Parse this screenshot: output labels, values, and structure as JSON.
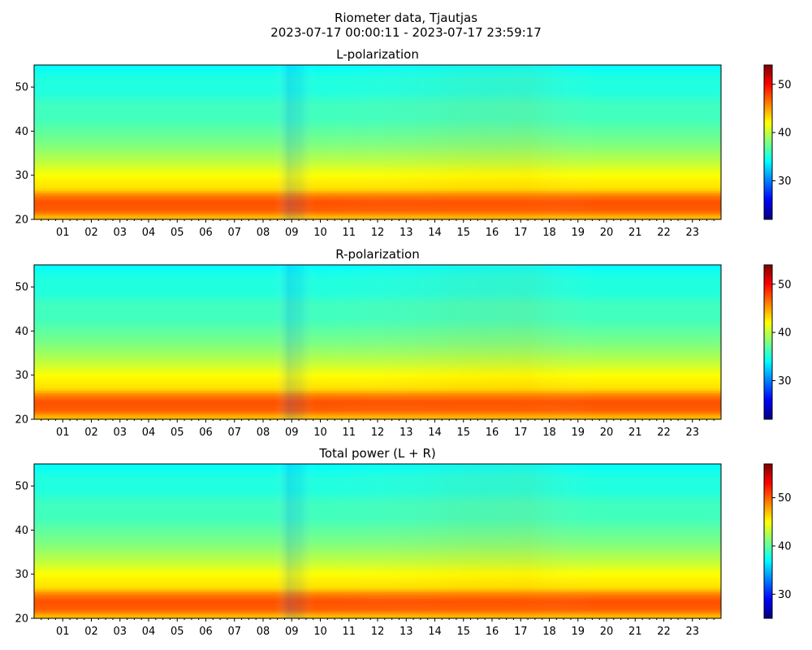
{
  "figure": {
    "title_line1": "Riometer data, Tjautjas",
    "title_line2": "2023-07-17 00:00:11 - 2023-07-17 23:59:17"
  },
  "colors": {
    "jet_stops": [
      "#00007f",
      "#0000ff",
      "#007fff",
      "#00ffff",
      "#7fff7f",
      "#ffff00",
      "#ff7f00",
      "#ff0000",
      "#7f0000"
    ]
  },
  "chart_data": [
    {
      "type": "heatmap",
      "title": "L-polarization",
      "x_tick_labels": [
        "01",
        "02",
        "03",
        "04",
        "05",
        "06",
        "07",
        "08",
        "09",
        "10",
        "11",
        "12",
        "13",
        "14",
        "15",
        "16",
        "17",
        "18",
        "19",
        "20",
        "21",
        "22",
        "23"
      ],
      "x_tick_values": [
        1,
        2,
        3,
        4,
        5,
        6,
        7,
        8,
        9,
        10,
        11,
        12,
        13,
        14,
        15,
        16,
        17,
        18,
        19,
        20,
        21,
        22,
        23
      ],
      "xlim": [
        0,
        24
      ],
      "ylim": [
        20,
        55
      ],
      "y_tick_values": [
        20,
        30,
        40,
        50
      ],
      "y_tick_labels": [
        "20",
        "30",
        "40",
        "50"
      ],
      "colorbar": {
        "range": [
          22,
          54
        ],
        "tick_values": [
          30,
          40,
          50
        ],
        "tick_labels": [
          "30",
          "40",
          "50"
        ],
        "colormap": "jet"
      },
      "value_profile_by_y": [
        {
          "y": 20.5,
          "value": 44
        },
        {
          "y": 22,
          "value": 47
        },
        {
          "y": 24,
          "value": 47.5
        },
        {
          "y": 25.5,
          "value": 46
        },
        {
          "y": 27,
          "value": 43
        },
        {
          "y": 30,
          "value": 42
        },
        {
          "y": 33,
          "value": 40
        },
        {
          "y": 35,
          "value": 39
        },
        {
          "y": 37,
          "value": 38
        },
        {
          "y": 40,
          "value": 37
        },
        {
          "y": 43,
          "value": 36
        },
        {
          "y": 46,
          "value": 36
        },
        {
          "y": 49,
          "value": 35
        },
        {
          "y": 52,
          "value": 35
        },
        {
          "y": 55,
          "value": 34
        }
      ]
    },
    {
      "type": "heatmap",
      "title": "R-polarization",
      "x_tick_labels": [
        "01",
        "02",
        "03",
        "04",
        "05",
        "06",
        "07",
        "08",
        "09",
        "10",
        "11",
        "12",
        "13",
        "14",
        "15",
        "16",
        "17",
        "18",
        "19",
        "20",
        "21",
        "22",
        "23"
      ],
      "x_tick_values": [
        1,
        2,
        3,
        4,
        5,
        6,
        7,
        8,
        9,
        10,
        11,
        12,
        13,
        14,
        15,
        16,
        17,
        18,
        19,
        20,
        21,
        22,
        23
      ],
      "xlim": [
        0,
        24
      ],
      "ylim": [
        20,
        55
      ],
      "y_tick_values": [
        20,
        30,
        40,
        50
      ],
      "y_tick_labels": [
        "20",
        "30",
        "40",
        "50"
      ],
      "colorbar": {
        "range": [
          22,
          54
        ],
        "tick_values": [
          30,
          40,
          50
        ],
        "tick_labels": [
          "30",
          "40",
          "50"
        ],
        "colormap": "jet"
      },
      "value_profile_by_y": [
        {
          "y": 20.5,
          "value": 44
        },
        {
          "y": 22,
          "value": 47
        },
        {
          "y": 24,
          "value": 47.5
        },
        {
          "y": 25.5,
          "value": 46
        },
        {
          "y": 27,
          "value": 43
        },
        {
          "y": 30,
          "value": 42
        },
        {
          "y": 33,
          "value": 40
        },
        {
          "y": 35,
          "value": 39
        },
        {
          "y": 37,
          "value": 38
        },
        {
          "y": 40,
          "value": 37
        },
        {
          "y": 43,
          "value": 36
        },
        {
          "y": 46,
          "value": 36
        },
        {
          "y": 49,
          "value": 35
        },
        {
          "y": 52,
          "value": 35
        },
        {
          "y": 55,
          "value": 34
        }
      ]
    },
    {
      "type": "heatmap",
      "title": "Total power (L + R)",
      "x_tick_labels": [
        "01",
        "02",
        "03",
        "04",
        "05",
        "06",
        "07",
        "08",
        "09",
        "10",
        "11",
        "12",
        "13",
        "14",
        "15",
        "16",
        "17",
        "18",
        "19",
        "20",
        "21",
        "22",
        "23"
      ],
      "x_tick_values": [
        1,
        2,
        3,
        4,
        5,
        6,
        7,
        8,
        9,
        10,
        11,
        12,
        13,
        14,
        15,
        16,
        17,
        18,
        19,
        20,
        21,
        22,
        23
      ],
      "xlim": [
        0,
        24
      ],
      "ylim": [
        20,
        55
      ],
      "y_tick_values": [
        20,
        30,
        40,
        50
      ],
      "y_tick_labels": [
        "20",
        "30",
        "40",
        "50"
      ],
      "colorbar": {
        "range": [
          25,
          57
        ],
        "tick_values": [
          30,
          40,
          50
        ],
        "tick_labels": [
          "30",
          "40",
          "50"
        ],
        "colormap": "jet"
      },
      "value_profile_by_y": [
        {
          "y": 20.5,
          "value": 47
        },
        {
          "y": 22,
          "value": 50
        },
        {
          "y": 24,
          "value": 50.5
        },
        {
          "y": 25.5,
          "value": 49
        },
        {
          "y": 27,
          "value": 46
        },
        {
          "y": 30,
          "value": 45
        },
        {
          "y": 33,
          "value": 43
        },
        {
          "y": 35,
          "value": 42
        },
        {
          "y": 37,
          "value": 41
        },
        {
          "y": 40,
          "value": 40
        },
        {
          "y": 43,
          "value": 39
        },
        {
          "y": 46,
          "value": 39
        },
        {
          "y": 49,
          "value": 38
        },
        {
          "y": 52,
          "value": 38
        },
        {
          "y": 55,
          "value": 37
        }
      ]
    }
  ]
}
